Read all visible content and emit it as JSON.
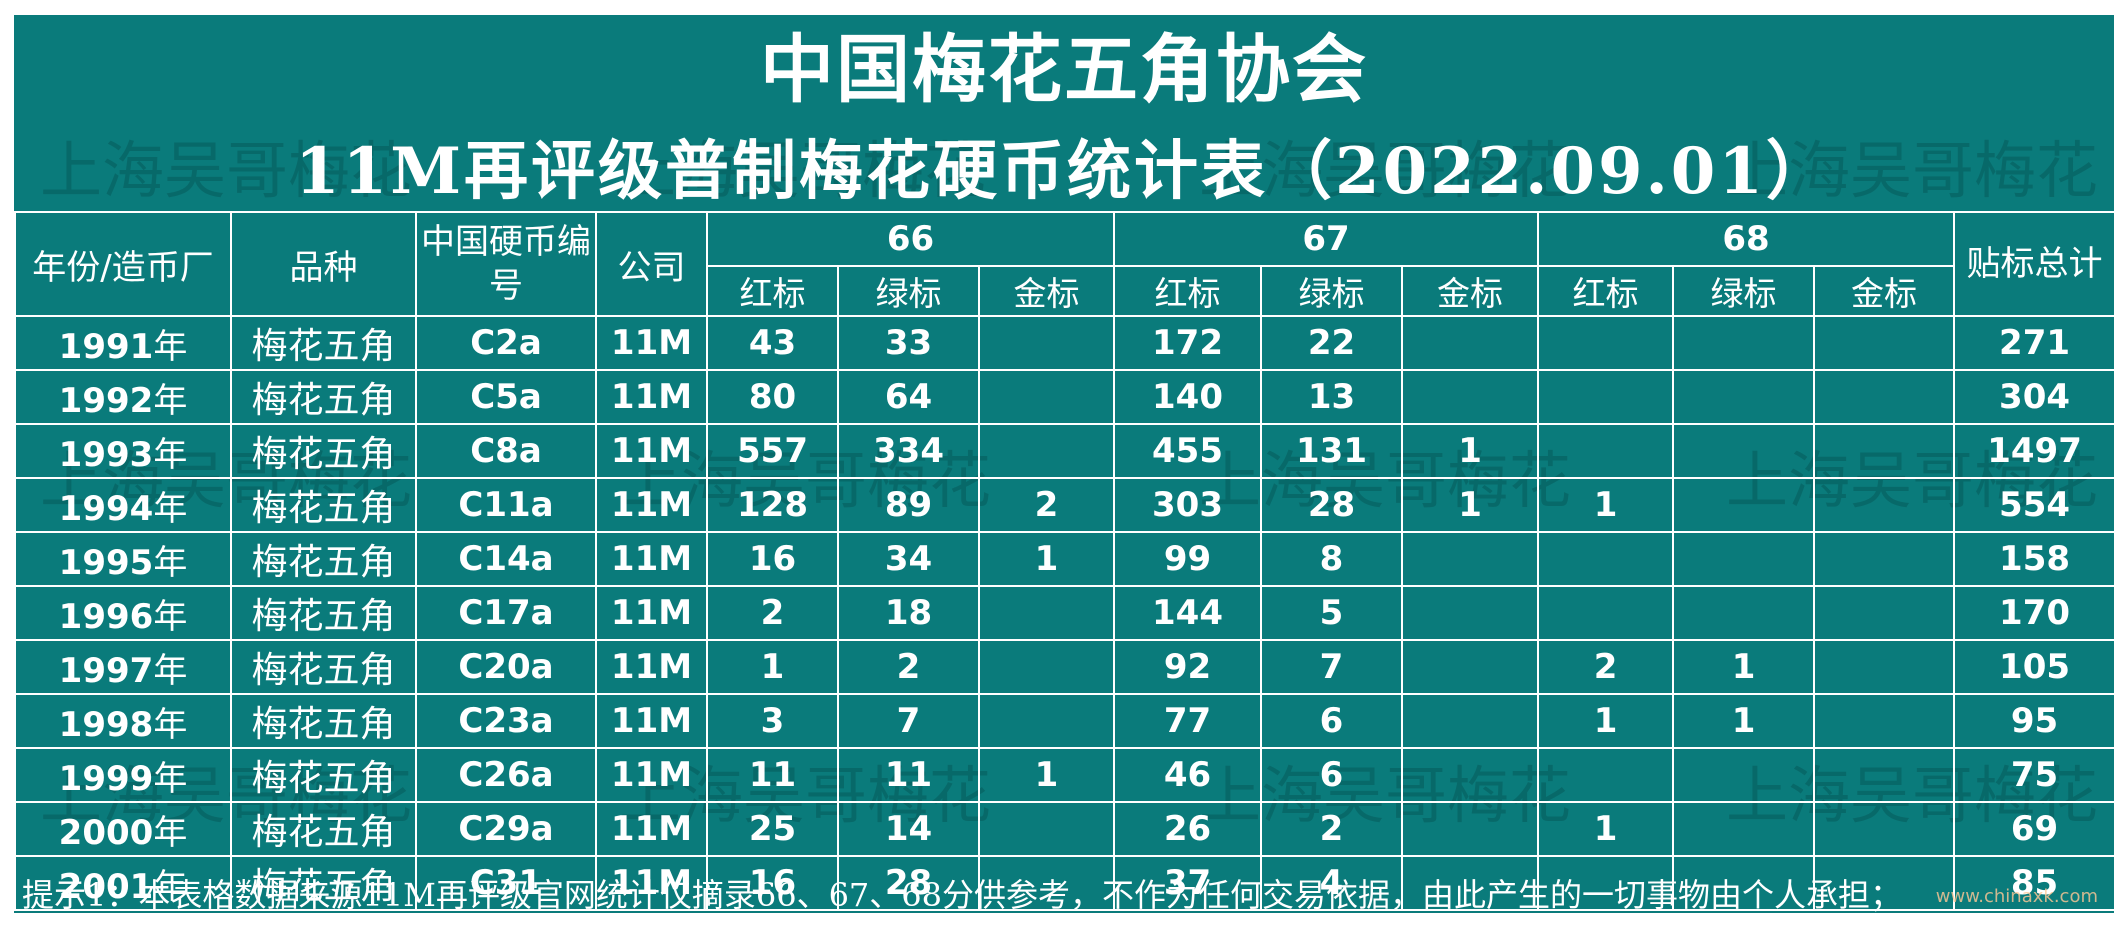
{
  "title": "中国梅花五角协会",
  "subtitle": "11M再评级普制梅花硬币统计表（2022.09.01）",
  "watermark": "上海吴哥梅花",
  "headers": {
    "year_mint": "年份/造币厂",
    "variety": "品种",
    "coin_code": "中国硬币编号",
    "company": "公司",
    "groups": [
      "66",
      "67",
      "68"
    ],
    "sub_labels": [
      "红标",
      "绿标",
      "金标"
    ],
    "total": "贴标总计"
  },
  "rows": [
    {
      "year": "1991",
      "unit": "年",
      "variety": "梅花五角",
      "code": "C2a",
      "company": "11M",
      "g66": [
        "43",
        "33",
        ""
      ],
      "g67": [
        "172",
        "22",
        ""
      ],
      "g68": [
        "",
        "",
        ""
      ],
      "total": "271"
    },
    {
      "year": "1992",
      "unit": "年",
      "variety": "梅花五角",
      "code": "C5a",
      "company": "11M",
      "g66": [
        "80",
        "64",
        ""
      ],
      "g67": [
        "140",
        "13",
        ""
      ],
      "g68": [
        "",
        "",
        ""
      ],
      "total": "304"
    },
    {
      "year": "1993",
      "unit": "年",
      "variety": "梅花五角",
      "code": "C8a",
      "company": "11M",
      "g66": [
        "557",
        "334",
        ""
      ],
      "g67": [
        "455",
        "131",
        "1"
      ],
      "g68": [
        "",
        "",
        ""
      ],
      "total": "1497"
    },
    {
      "year": "1994",
      "unit": "年",
      "variety": "梅花五角",
      "code": "C11a",
      "company": "11M",
      "g66": [
        "128",
        "89",
        "2"
      ],
      "g67": [
        "303",
        "28",
        "1"
      ],
      "g68": [
        "1",
        "",
        ""
      ],
      "total": "554"
    },
    {
      "year": "1995",
      "unit": "年",
      "variety": "梅花五角",
      "code": "C14a",
      "company": "11M",
      "g66": [
        "16",
        "34",
        "1"
      ],
      "g67": [
        "99",
        "8",
        ""
      ],
      "g68": [
        "",
        "",
        ""
      ],
      "total": "158"
    },
    {
      "year": "1996",
      "unit": "年",
      "variety": "梅花五角",
      "code": "C17a",
      "company": "11M",
      "g66": [
        "2",
        "18",
        ""
      ],
      "g67": [
        "144",
        "5",
        ""
      ],
      "g68": [
        "",
        "",
        ""
      ],
      "total": "170"
    },
    {
      "year": "1997",
      "unit": "年",
      "variety": "梅花五角",
      "code": "C20a",
      "company": "11M",
      "g66": [
        "1",
        "2",
        ""
      ],
      "g67": [
        "92",
        "7",
        ""
      ],
      "g68": [
        "2",
        "1",
        ""
      ],
      "total": "105"
    },
    {
      "year": "1998",
      "unit": "年",
      "variety": "梅花五角",
      "code": "C23a",
      "company": "11M",
      "g66": [
        "3",
        "7",
        ""
      ],
      "g67": [
        "77",
        "6",
        ""
      ],
      "g68": [
        "1",
        "1",
        ""
      ],
      "total": "95"
    },
    {
      "year": "1999",
      "unit": "年",
      "variety": "梅花五角",
      "code": "C26a",
      "company": "11M",
      "g66": [
        "11",
        "11",
        "1"
      ],
      "g67": [
        "46",
        "6",
        ""
      ],
      "g68": [
        "",
        "",
        ""
      ],
      "total": "75"
    },
    {
      "year": "2000",
      "unit": "年",
      "variety": "梅花五角",
      "code": "C29a",
      "company": "11M",
      "g66": [
        "25",
        "14",
        ""
      ],
      "g67": [
        "26",
        "2",
        ""
      ],
      "g68": [
        "1",
        "",
        ""
      ],
      "total": "69"
    },
    {
      "year": "2001",
      "unit": "年",
      "variety": "梅花五角",
      "code": "C31",
      "company": "11M",
      "g66": [
        "16",
        "28",
        ""
      ],
      "g67": [
        "37",
        "4",
        ""
      ],
      "g68": [
        "",
        "",
        ""
      ],
      "total": "85"
    }
  ],
  "footnote": "提示1：本表格数据来源11M再评级官网统计仅摘录66、67、68分供参考，不作为任何交易依据，由此产生的一切事物由个人承担；",
  "corner_mark": "www.chinaxk.com",
  "colors": {
    "background": "#0a7b7b",
    "text": "#ffffff",
    "grid": "#ffffff"
  }
}
